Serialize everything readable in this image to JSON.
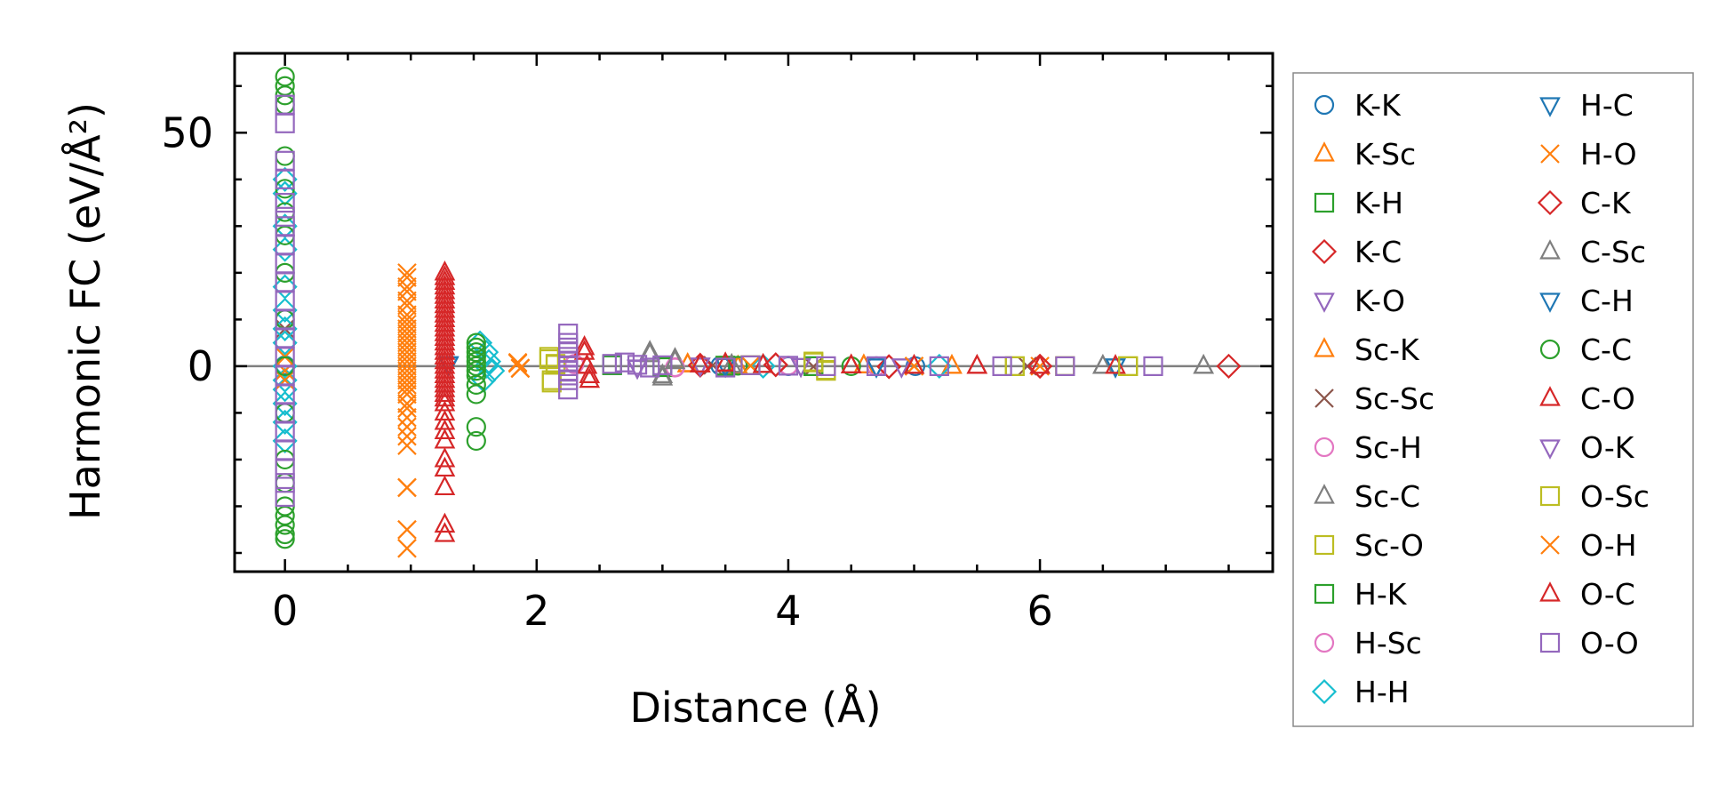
{
  "chart_data": {
    "type": "scatter",
    "xlabel": "Distance (Å)",
    "ylabel": "Harmonic FC (eV/Å²)",
    "xlim": [
      -0.4,
      7.85
    ],
    "ylim": [
      -44,
      67
    ],
    "xticks": [
      0,
      2,
      4,
      6
    ],
    "yticks": [
      0,
      50
    ],
    "x_minor_step": 0.5,
    "y_minor_step": 10,
    "zero_line": true,
    "legend_position": "right, outside plot",
    "series": [
      {
        "name": "K-K",
        "marker": "circle",
        "color": "#1f77b4",
        "x": [
          0,
          3.46,
          4.0,
          5.01
        ],
        "y": [
          0.2,
          0.1,
          0.0,
          0.0
        ]
      },
      {
        "name": "K-Sc",
        "marker": "triangle-up",
        "color": "#ff7f0e",
        "x": [
          3.2,
          3.6,
          4.6,
          5.3
        ],
        "y": [
          0.4,
          -0.2,
          0.1,
          0.0
        ]
      },
      {
        "name": "K-H",
        "marker": "square",
        "color": "#2ca02c",
        "x": [
          2.6,
          3.0,
          3.5,
          4.2
        ],
        "y": [
          0.3,
          -0.2,
          0.1,
          0.0
        ]
      },
      {
        "name": "K-C",
        "marker": "diamond",
        "color": "#d62728",
        "x": [
          3.3,
          3.9,
          4.8,
          6.0
        ],
        "y": [
          0.2,
          0.3,
          -0.1,
          0.0
        ]
      },
      {
        "name": "K-O",
        "marker": "triangle-down",
        "color": "#9467bd",
        "x": [
          2.8,
          3.3,
          4.1,
          4.9
        ],
        "y": [
          -0.3,
          0.2,
          0.1,
          0.0
        ]
      },
      {
        "name": "Sc-K",
        "marker": "triangle-up",
        "color": "#ff7f0e",
        "x": [
          3.2,
          3.6,
          4.6,
          5.3
        ],
        "y": [
          0.3,
          -0.1,
          0.1,
          0.0
        ]
      },
      {
        "name": "Sc-Sc",
        "marker": "x",
        "color": "#8c564b",
        "x": [
          0,
          3.4,
          4.2,
          5.9
        ],
        "y": [
          8.0,
          0.2,
          -0.1,
          0.0
        ]
      },
      {
        "name": "Sc-H",
        "marker": "circle",
        "color": "#e377c2",
        "x": [
          2.3,
          3.1,
          4.0,
          4.7
        ],
        "y": [
          0.5,
          -0.3,
          0.1,
          0.0
        ]
      },
      {
        "name": "Sc-C",
        "marker": "triangle-up",
        "color": "#7f7f7f",
        "x": [
          2.9,
          3.0,
          3.1,
          3.55,
          6.5,
          7.3
        ],
        "y": [
          3.0,
          -2.5,
          1.5,
          0.2,
          0.0,
          0.0
        ]
      },
      {
        "name": "Sc-O",
        "marker": "square",
        "color": "#bcbd22",
        "x": [
          2.1,
          2.12,
          2.15,
          3.7,
          4.2,
          4.3,
          5.8,
          6.2,
          6.7
        ],
        "y": [
          2.0,
          -3.5,
          0.5,
          0.2,
          1.0,
          -1.0,
          0.0,
          0.0,
          0.0
        ]
      },
      {
        "name": "H-K",
        "marker": "square",
        "color": "#2ca02c",
        "x": [
          2.6,
          3.0,
          3.5,
          4.2
        ],
        "y": [
          0.2,
          -0.2,
          0.1,
          0.0
        ]
      },
      {
        "name": "H-Sc",
        "marker": "circle",
        "color": "#e377c2",
        "x": [
          2.3,
          3.1,
          4.0,
          4.7
        ],
        "y": [
          0.4,
          -0.2,
          0.1,
          0.0
        ]
      },
      {
        "name": "H-H",
        "marker": "diamond",
        "color": "#17becf",
        "x": [
          0,
          0,
          0,
          0,
          0,
          0,
          0,
          0,
          0,
          0,
          0,
          0,
          0,
          0,
          1.55,
          1.6,
          1.62,
          1.65,
          1.58,
          1.6,
          3.8,
          5.2
        ],
        "y": [
          40,
          37,
          30,
          25,
          17,
          12,
          8,
          5,
          0,
          -5,
          -8,
          -12,
          -16,
          -3,
          5,
          3,
          1,
          -1,
          -3,
          0,
          0.0,
          0.0
        ]
      },
      {
        "name": "H-C",
        "marker": "triangle-down",
        "color": "#1f77b4",
        "x": [
          1.3,
          3.5,
          4.7,
          6.6
        ],
        "y": [
          0.5,
          0.1,
          0.0,
          0.0
        ]
      },
      {
        "name": "H-O",
        "marker": "x",
        "color": "#ff7f0e",
        "x": [
          0,
          0,
          0,
          0.97,
          0.97,
          0.97,
          0.97,
          0.97,
          0.97,
          0.97,
          0.97,
          0.97,
          0.97,
          0.97,
          0.97,
          0.97,
          0.97,
          0.97,
          0.97,
          0.97,
          0.97,
          1.85,
          1.87,
          3.7,
          5.0,
          6.0
        ],
        "y": [
          2,
          -1,
          -3,
          20,
          17,
          14,
          11,
          9,
          7,
          5,
          3,
          1,
          -1,
          -3,
          -5,
          -8,
          -11,
          -15,
          -26,
          -35,
          -39,
          0.8,
          -0.5,
          0.1,
          0.0,
          0.0
        ]
      },
      {
        "name": "C-K",
        "marker": "diamond",
        "color": "#d62728",
        "x": [
          3.3,
          3.9,
          4.8,
          6.0,
          7.5
        ],
        "y": [
          0.2,
          0.3,
          -0.1,
          0.0,
          0.0
        ]
      },
      {
        "name": "C-Sc",
        "marker": "triangle-up",
        "color": "#7f7f7f",
        "x": [
          2.9,
          3.0,
          3.1,
          3.55,
          6.5,
          7.3
        ],
        "y": [
          2.5,
          -2.0,
          1.0,
          0.2,
          0.0,
          0.0
        ]
      },
      {
        "name": "C-H",
        "marker": "triangle-down",
        "color": "#1f77b4",
        "x": [
          1.3,
          3.5,
          4.7,
          6.6
        ],
        "y": [
          0.4,
          0.1,
          0.0,
          0.0
        ]
      },
      {
        "name": "C-C",
        "marker": "circle",
        "color": "#2ca02c",
        "x": [
          0,
          0,
          0,
          0,
          0,
          0,
          0,
          0,
          0,
          0,
          0,
          0,
          0,
          0,
          0,
          0,
          0,
          0,
          0,
          1.52,
          1.52,
          1.52,
          1.52,
          1.52,
          1.52,
          1.52,
          1.52,
          1.52,
          1.52,
          1.52,
          1.52,
          3.6,
          4.5
        ],
        "y": [
          62,
          60,
          58,
          56,
          45,
          38,
          33,
          28,
          20,
          10,
          0,
          -10,
          -20,
          -25,
          -30,
          -32,
          -34,
          -36,
          -37,
          5,
          4,
          3,
          2,
          1,
          0,
          -1,
          -2,
          -4,
          -6,
          -13,
          -16,
          0.1,
          0.0
        ]
      },
      {
        "name": "C-O",
        "marker": "triangle-up",
        "color": "#d62728",
        "x": [
          1.27,
          1.27,
          1.27,
          1.27,
          1.27,
          1.27,
          1.27,
          1.27,
          1.27,
          1.27,
          1.27,
          1.27,
          1.27,
          1.27,
          1.27,
          1.27,
          1.27,
          1.27,
          1.27,
          1.27,
          2.38,
          2.4,
          2.42,
          3.3,
          3.5,
          3.8,
          4.5,
          5.0,
          5.5,
          6.0,
          6.6
        ],
        "y": [
          20,
          18,
          16,
          14,
          12,
          10,
          8,
          6,
          4,
          2,
          0,
          -2,
          -4,
          -6,
          -8,
          -12,
          -16,
          -22,
          -26,
          -36,
          4,
          0,
          -3,
          0.3,
          0.5,
          0.2,
          0.1,
          0.0,
          0.0,
          0.0,
          0.0
        ]
      },
      {
        "name": "O-K",
        "marker": "triangle-down",
        "color": "#9467bd",
        "x": [
          2.8,
          3.3,
          4.1,
          4.9
        ],
        "y": [
          -0.2,
          0.2,
          0.1,
          0.0
        ]
      },
      {
        "name": "O-Sc",
        "marker": "square",
        "color": "#bcbd22",
        "x": [
          2.1,
          2.12,
          2.15,
          3.7,
          4.2,
          4.3,
          5.8,
          6.2,
          6.7
        ],
        "y": [
          1.5,
          -3.0,
          0.3,
          0.2,
          0.8,
          -0.8,
          0.0,
          0.0,
          0.0
        ]
      },
      {
        "name": "O-H",
        "marker": "x",
        "color": "#ff7f0e",
        "x": [
          0.97,
          0.97,
          0.97,
          0.97,
          0.97,
          0.97,
          0.97,
          0.97,
          0.97,
          0.97,
          0.97,
          0.97,
          0.97,
          0.97,
          0.97,
          0.97,
          0.97,
          0.97,
          1.85,
          1.87,
          3.7,
          5.0
        ],
        "y": [
          19,
          16,
          13,
          10,
          8,
          6,
          4,
          2,
          0,
          -2,
          -4,
          -6,
          -9,
          -13,
          -17,
          -26,
          -35,
          -39,
          0.6,
          -0.4,
          0.1,
          0.0
        ]
      },
      {
        "name": "O-C",
        "marker": "triangle-up",
        "color": "#d62728",
        "x": [
          1.27,
          1.27,
          1.27,
          1.27,
          1.27,
          1.27,
          1.27,
          1.27,
          1.27,
          1.27,
          1.27,
          1.27,
          1.27,
          1.27,
          1.27,
          1.27,
          1.27,
          1.27,
          2.38,
          2.4,
          2.42,
          3.3,
          3.5,
          3.8,
          4.5,
          5.0,
          5.5,
          6.0
        ],
        "y": [
          19,
          17,
          15,
          13,
          11,
          9,
          7,
          5,
          3,
          1,
          -1,
          -3,
          -5,
          -7,
          -10,
          -14,
          -20,
          -34,
          3,
          0,
          -2,
          0.3,
          0.5,
          0.2,
          0.1,
          0.0,
          0.0,
          0.0
        ]
      },
      {
        "name": "O-O",
        "marker": "square",
        "color": "#9467bd",
        "x": [
          0,
          0,
          0,
          0,
          0,
          0,
          0,
          0,
          0,
          0,
          0,
          0,
          0,
          0,
          0,
          0,
          0,
          0,
          0,
          0,
          0,
          0,
          2.25,
          2.25,
          2.25,
          2.25,
          2.25,
          2.25,
          2.25,
          2.25,
          2.25,
          2.25,
          2.25,
          2.6,
          2.7,
          2.8,
          2.9,
          3.0,
          3.5,
          3.7,
          4.0,
          4.3,
          4.7,
          5.2,
          5.7,
          6.2,
          6.9
        ],
        "y": [
          56,
          52,
          44,
          40,
          35,
          32,
          30,
          26,
          22,
          18,
          14,
          10,
          6,
          2,
          -2,
          -6,
          -10,
          -14,
          -18,
          -22,
          -25,
          -28,
          7,
          5,
          4,
          3,
          2,
          1,
          0,
          -1,
          -2,
          -3,
          -5,
          0.5,
          0.8,
          0.3,
          -0.3,
          0.2,
          -0.3,
          0.2,
          0.1,
          0.0,
          0.0,
          0.0,
          0.0,
          0.0,
          0.0
        ]
      }
    ]
  }
}
